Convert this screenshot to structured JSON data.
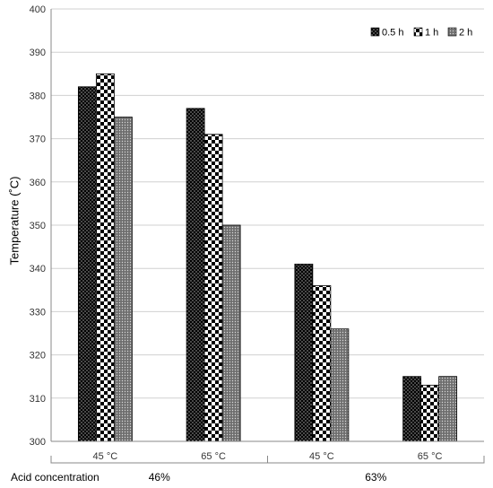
{
  "chart_data": {
    "type": "bar",
    "ylabel": "Temperature (˚C)",
    "ylim": [
      300,
      400
    ],
    "yticks": [
      300,
      310,
      320,
      330,
      340,
      350,
      360,
      370,
      380,
      390,
      400
    ],
    "grid": "horizontal",
    "legend_position": "top-right",
    "categories": [
      "45 °C",
      "65 °C",
      "45 °C",
      "65 °C"
    ],
    "groups": [
      {
        "label": "46%",
        "span": [
          0,
          1
        ]
      },
      {
        "label": "63%",
        "span": [
          2,
          3
        ]
      }
    ],
    "group_axis_label": "Acid concentration",
    "series": [
      {
        "name": "0.5 h",
        "values": [
          382,
          377,
          341,
          315
        ],
        "pattern": "dark-dots"
      },
      {
        "name": "1 h",
        "values": [
          385,
          371,
          336,
          313
        ],
        "pattern": "checker"
      },
      {
        "name": "2 h",
        "values": [
          375,
          350,
          326,
          315
        ],
        "pattern": "gray-dots"
      }
    ]
  },
  "colors": {
    "axis": "#888888",
    "grid": "#d0d0d0",
    "bar_stroke": "#000000"
  }
}
